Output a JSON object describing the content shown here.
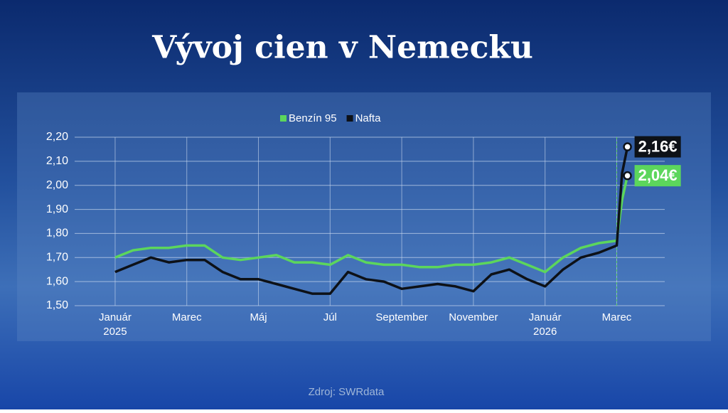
{
  "chart_data": {
    "type": "line",
    "title": "Vývoj cien v Nemecku",
    "source": "Zdroj: SWRdata",
    "x": [
      0,
      0.5,
      1,
      1.5,
      2,
      2.5,
      3,
      3.5,
      4,
      4.5,
      5,
      5.5,
      6,
      6.5,
      7,
      7.5,
      8,
      8.5,
      9,
      9.5,
      10,
      10.5,
      11,
      11.5,
      12,
      12.5,
      13,
      13.5,
      14,
      14.15,
      14.3
    ],
    "series": [
      {
        "name": "Benzín 95",
        "color": "#5cd65c",
        "values": [
          1.7,
          1.73,
          1.74,
          1.74,
          1.75,
          1.75,
          1.7,
          1.69,
          1.7,
          1.71,
          1.68,
          1.68,
          1.67,
          1.71,
          1.68,
          1.67,
          1.67,
          1.66,
          1.66,
          1.67,
          1.67,
          1.68,
          1.7,
          1.67,
          1.64,
          1.7,
          1.74,
          1.76,
          1.77,
          1.94,
          2.04
        ],
        "value_labels": [
          null,
          null,
          null,
          null,
          null,
          null,
          null,
          null,
          null,
          null,
          null,
          null,
          null,
          null,
          null,
          null,
          null,
          null,
          null,
          null,
          null,
          null,
          null,
          null,
          null,
          null,
          null,
          null,
          null,
          null,
          "2,04€"
        ]
      },
      {
        "name": "Nafta",
        "color": "#0d1117",
        "values": [
          1.64,
          1.67,
          1.7,
          1.68,
          1.69,
          1.69,
          1.64,
          1.61,
          1.61,
          1.59,
          1.57,
          1.55,
          1.55,
          1.64,
          1.61,
          1.6,
          1.57,
          1.58,
          1.59,
          1.58,
          1.56,
          1.63,
          1.65,
          1.61,
          1.58,
          1.65,
          1.7,
          1.72,
          1.75,
          2.05,
          2.16
        ],
        "value_labels": [
          null,
          null,
          null,
          null,
          null,
          null,
          null,
          null,
          null,
          null,
          null,
          null,
          null,
          null,
          null,
          null,
          null,
          null,
          null,
          null,
          null,
          null,
          null,
          null,
          null,
          null,
          null,
          null,
          null,
          null,
          "2,16€"
        ]
      }
    ],
    "xlim": [
      -1.13,
      15.34
    ],
    "xticks": [
      {
        "value": 0,
        "label": "Január"
      },
      {
        "value": 2,
        "label": "Marec"
      },
      {
        "value": 4,
        "label": "Máj"
      },
      {
        "value": 6,
        "label": "Júl"
      },
      {
        "value": 8,
        "label": "September"
      },
      {
        "value": 10,
        "label": "November"
      },
      {
        "value": 12,
        "label": "Január"
      },
      {
        "value": 14,
        "label": "Marec"
      }
    ],
    "x_tick_years": [
      {
        "value": 0,
        "label": "2025"
      },
      {
        "value": 12,
        "label": "2026"
      }
    ],
    "vline_x": 14,
    "ylim": [
      1.5,
      2.2
    ],
    "yticks": [
      {
        "value": 1.5,
        "label": "1,50"
      },
      {
        "value": 1.6,
        "label": "1,60"
      },
      {
        "value": 1.7,
        "label": "1,70"
      },
      {
        "value": 1.8,
        "label": "1,80"
      },
      {
        "value": 1.9,
        "label": "1,90"
      },
      {
        "value": 2.0,
        "label": "2,00"
      },
      {
        "value": 2.1,
        "label": "2,10"
      },
      {
        "value": 2.2,
        "label": "2,20"
      }
    ],
    "grid": true,
    "legend": "top"
  }
}
